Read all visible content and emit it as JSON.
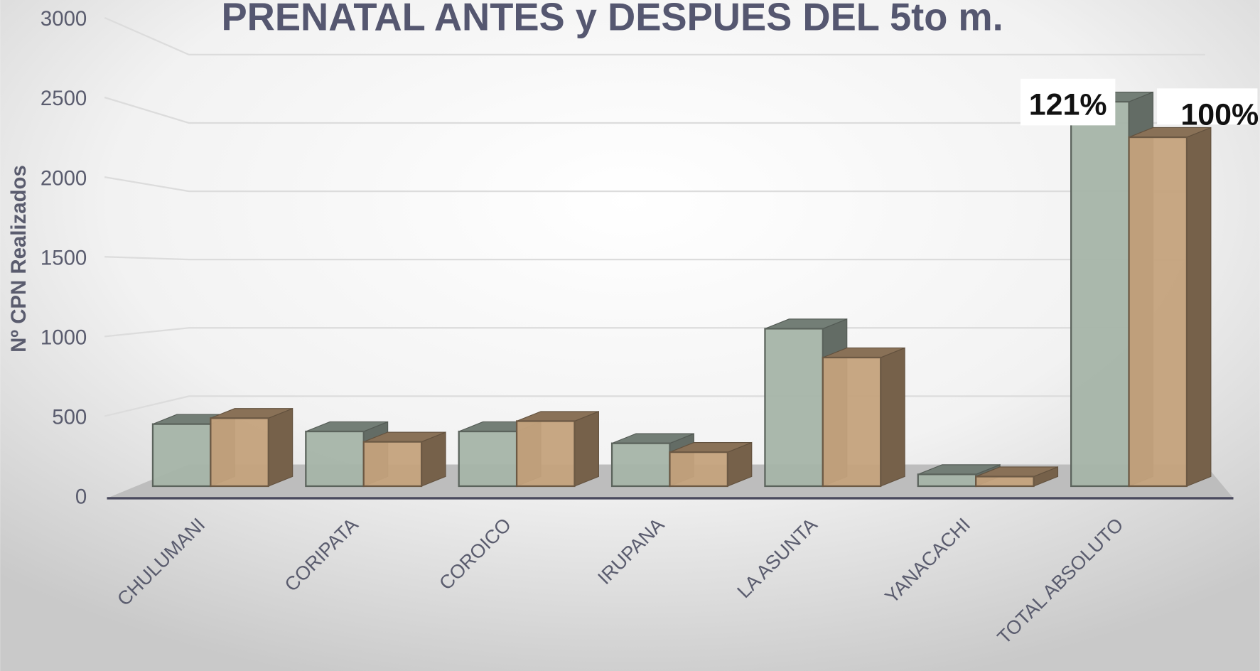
{
  "chart_data": {
    "type": "bar3d",
    "title": "PRENATAL ANTES y DESPUES DEL 5to m.",
    "y_label": "Nº CPN Realizados",
    "categories": [
      "CHULUMANI",
      "CORIPATA",
      "COROICO",
      "IRUPANA",
      "LA ASUNTA",
      "YANACACHI",
      "TOTAL  ABSOLUTO"
    ],
    "series": [
      {
        "color": "#a5b4a8",
        "values": [
          420,
          370,
          370,
          290,
          1065,
          80,
          2600
        ]
      },
      {
        "color": "#c4a27c",
        "values": [
          460,
          300,
          440,
          230,
          870,
          65,
          2360
        ]
      }
    ],
    "annotations": [
      "121%",
      "100%"
    ],
    "ylim": [
      0,
      3000
    ],
    "yticks": [
      0,
      500,
      1000,
      1500,
      2000,
      2500,
      3000
    ],
    "grid": true
  }
}
